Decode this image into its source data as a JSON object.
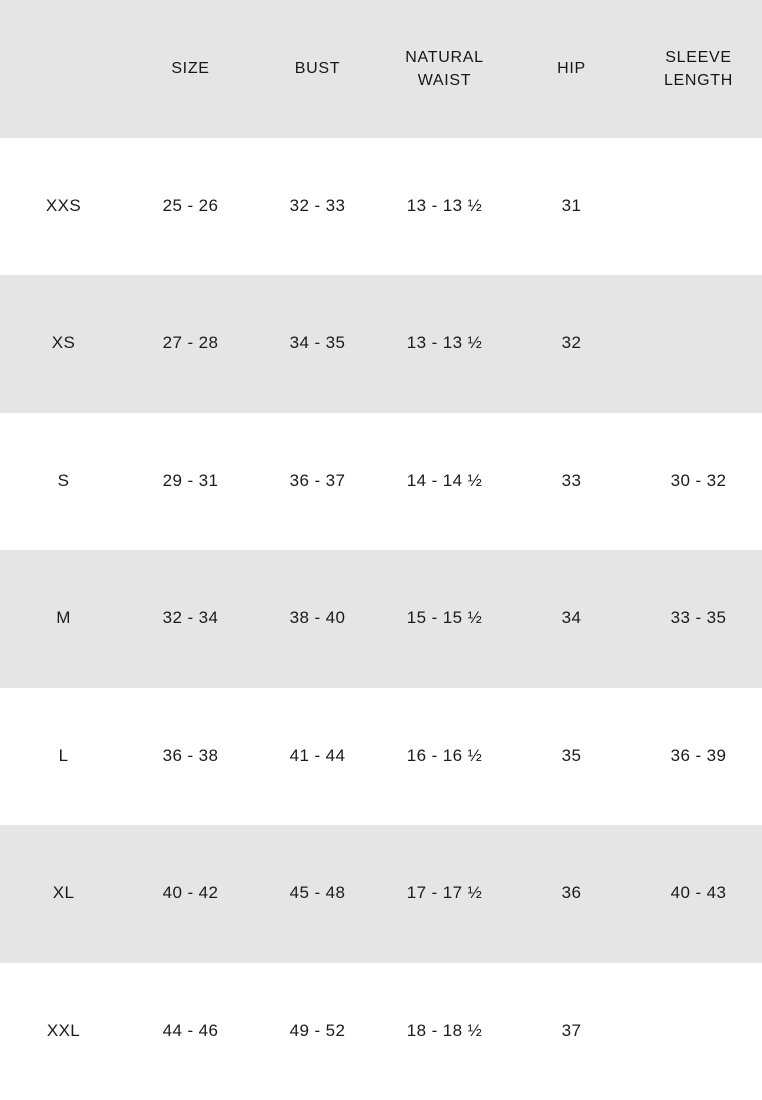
{
  "page": {
    "background_color": "#ffffff",
    "stripe_color": "#e5e5e5",
    "text_color": "#1b1b1b"
  },
  "chart_data": {
    "type": "table",
    "title": "",
    "columns": [
      "",
      "SIZE",
      "BUST",
      "NATURAL WAIST",
      "HIP",
      "SLEEVE LENGTH"
    ],
    "rows": [
      [
        "XXS",
        "25 - 26",
        "32 - 33",
        "13 - 13 ½",
        "31",
        ""
      ],
      [
        "XS",
        "27 - 28",
        "34 - 35",
        "13 - 13 ½",
        "32",
        ""
      ],
      [
        "S",
        "29 - 31",
        "36 - 37",
        "14 - 14 ½",
        "33",
        "30 - 32"
      ],
      [
        "M",
        "32 - 34",
        "38 - 40",
        "15 - 15 ½",
        "34",
        "33 - 35"
      ],
      [
        "L",
        "36 - 38",
        "41 - 44",
        "16 - 16 ½",
        "35",
        "36 - 39"
      ],
      [
        "XL",
        "40 - 42",
        "45 - 48",
        "17 - 17 ½",
        "36",
        "40 - 43"
      ],
      [
        "XXL",
        "44 - 46",
        "49 - 52",
        "18 - 18 ½",
        "37",
        ""
      ]
    ],
    "layout": {
      "striped_rows": true,
      "stripe_pattern": "header, XS, M, XL rows shaded gray; others white",
      "grid": false,
      "borders": false
    }
  }
}
